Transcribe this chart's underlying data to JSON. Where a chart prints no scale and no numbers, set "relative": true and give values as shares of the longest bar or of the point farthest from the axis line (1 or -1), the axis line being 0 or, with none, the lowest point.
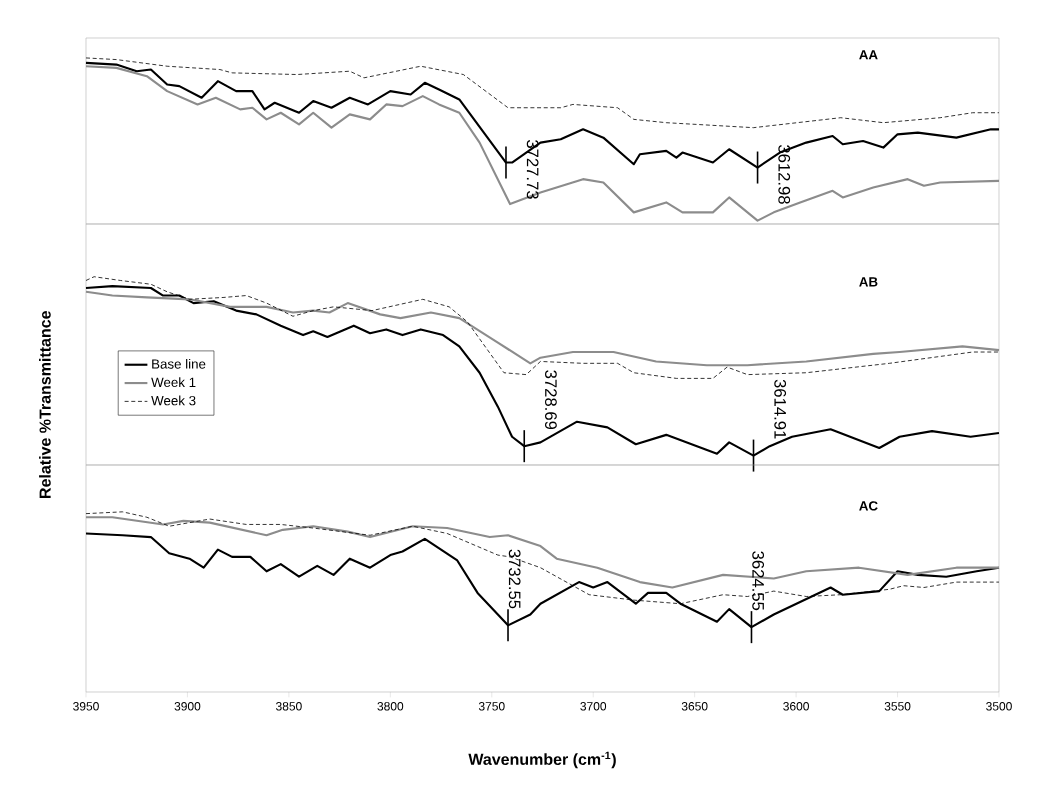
{
  "chart_data": [
    {
      "type": "line",
      "title": "AA",
      "relative": true,
      "xlim": [
        3950,
        3500
      ],
      "tick_labels": false,
      "series": [
        {
          "color": "#000000",
          "line_style": "solid",
          "x": [
            3950,
            3935,
            3925,
            3918,
            3910,
            3904,
            3893,
            3885,
            3876,
            3868,
            3862,
            3857,
            3845,
            3838,
            3829,
            3820,
            3811,
            3800,
            3790,
            3783,
            3776,
            3766,
            3743,
            3740,
            3726,
            3716,
            3705,
            3695,
            3680,
            3677,
            3664,
            3659,
            3656,
            3641,
            3633,
            3619,
            3608,
            3595,
            3582,
            3577,
            3567,
            3557,
            3550,
            3540,
            3521,
            3504,
            3500
          ],
          "values": [
            0.97,
            0.96,
            0.92,
            0.93,
            0.84,
            0.83,
            0.76,
            0.86,
            0.8,
            0.8,
            0.69,
            0.73,
            0.67,
            0.74,
            0.7,
            0.76,
            0.72,
            0.8,
            0.78,
            0.85,
            0.81,
            0.75,
            0.37,
            0.37,
            0.49,
            0.51,
            0.57,
            0.52,
            0.36,
            0.42,
            0.44,
            0.4,
            0.43,
            0.37,
            0.45,
            0.34,
            0.43,
            0.49,
            0.53,
            0.48,
            0.5,
            0.46,
            0.54,
            0.55,
            0.52,
            0.57,
            0.57
          ]
        },
        {
          "color": "#8c8c8c",
          "line_style": "solid",
          "x": [
            3950,
            3935,
            3920,
            3910,
            3895,
            3886,
            3874,
            3868,
            3861,
            3854,
            3845,
            3838,
            3829,
            3820,
            3810,
            3802,
            3794,
            3784,
            3776,
            3766,
            3756,
            3741,
            3726,
            3705,
            3695,
            3680,
            3664,
            3656,
            3641,
            3633,
            3619,
            3611,
            3598,
            3582,
            3577,
            3562,
            3545,
            3537,
            3529,
            3500
          ],
          "values": [
            0.95,
            0.94,
            0.89,
            0.8,
            0.72,
            0.76,
            0.69,
            0.7,
            0.63,
            0.67,
            0.6,
            0.67,
            0.58,
            0.66,
            0.63,
            0.72,
            0.71,
            0.77,
            0.72,
            0.67,
            0.49,
            0.12,
            0.19,
            0.27,
            0.25,
            0.07,
            0.13,
            0.07,
            0.07,
            0.16,
            0.02,
            0.07,
            0.13,
            0.2,
            0.16,
            0.22,
            0.27,
            0.23,
            0.25,
            0.26
          ]
        },
        {
          "color": "#000000",
          "line_style": "dashed",
          "x": [
            3950,
            3935,
            3910,
            3884,
            3878,
            3846,
            3820,
            3813,
            3785,
            3764,
            3742,
            3716,
            3710,
            3688,
            3680,
            3664,
            3621,
            3578,
            3557,
            3529,
            3513,
            3500
          ],
          "values": [
            1.0,
            0.99,
            0.95,
            0.93,
            0.91,
            0.9,
            0.92,
            0.88,
            0.95,
            0.9,
            0.7,
            0.7,
            0.72,
            0.7,
            0.63,
            0.61,
            0.58,
            0.64,
            0.61,
            0.64,
            0.67,
            0.67
          ]
        }
      ],
      "annotations": [
        {
          "text": "3727.73",
          "x": 3743,
          "y": 0.37
        },
        {
          "text": "3612.98",
          "x": 3619,
          "y": 0.34
        }
      ]
    },
    {
      "type": "line",
      "title": "AB",
      "ylabel": "Relative  %Transmittance",
      "relative": true,
      "xlim": [
        3950,
        3500
      ],
      "tick_labels": false,
      "legend": "left",
      "series": [
        {
          "name": "Base line",
          "color": "#000000",
          "line_style": "solid",
          "x": [
            3950,
            3937,
            3918,
            3912,
            3904,
            3897,
            3887,
            3876,
            3866,
            3854,
            3843,
            3838,
            3831,
            3818,
            3810,
            3802,
            3794,
            3785,
            3774,
            3766,
            3756,
            3747,
            3740,
            3734,
            3726,
            3708,
            3693,
            3679,
            3664,
            3639,
            3633,
            3621,
            3613,
            3602,
            3583,
            3559,
            3549,
            3533,
            3514,
            3500
          ],
          "values": [
            0.94,
            0.95,
            0.94,
            0.9,
            0.9,
            0.86,
            0.87,
            0.82,
            0.8,
            0.74,
            0.69,
            0.71,
            0.68,
            0.74,
            0.7,
            0.72,
            0.69,
            0.72,
            0.69,
            0.63,
            0.49,
            0.31,
            0.15,
            0.1,
            0.12,
            0.23,
            0.2,
            0.11,
            0.16,
            0.06,
            0.12,
            0.05,
            0.1,
            0.15,
            0.19,
            0.09,
            0.15,
            0.18,
            0.15,
            0.17
          ]
        },
        {
          "name": "Week 1",
          "color": "#8c8c8c",
          "line_style": "solid",
          "x": [
            3950,
            3937,
            3920,
            3899,
            3879,
            3861,
            3848,
            3838,
            3830,
            3821,
            3805,
            3795,
            3780,
            3766,
            3747,
            3731,
            3726,
            3710,
            3690,
            3669,
            3644,
            3624,
            3595,
            3562,
            3549,
            3518,
            3500
          ],
          "values": [
            0.92,
            0.9,
            0.89,
            0.88,
            0.84,
            0.84,
            0.81,
            0.82,
            0.81,
            0.86,
            0.8,
            0.78,
            0.81,
            0.78,
            0.65,
            0.54,
            0.57,
            0.6,
            0.6,
            0.55,
            0.53,
            0.53,
            0.55,
            0.59,
            0.6,
            0.63,
            0.61
          ]
        },
        {
          "name": "Week 3",
          "color": "#000000",
          "line_style": "dashed",
          "x": [
            3950,
            3946,
            3933,
            3918,
            3910,
            3899,
            3882,
            3871,
            3861,
            3848,
            3838,
            3828,
            3809,
            3784,
            3771,
            3762,
            3752,
            3744,
            3733,
            3726,
            3705,
            3688,
            3680,
            3659,
            3641,
            3634,
            3624,
            3595,
            3554,
            3513,
            3500
          ],
          "values": [
            0.98,
            1.0,
            0.98,
            0.96,
            0.92,
            0.88,
            0.89,
            0.9,
            0.86,
            0.79,
            0.82,
            0.84,
            0.82,
            0.88,
            0.84,
            0.76,
            0.61,
            0.49,
            0.48,
            0.55,
            0.54,
            0.54,
            0.49,
            0.46,
            0.46,
            0.52,
            0.48,
            0.49,
            0.54,
            0.6,
            0.6
          ]
        }
      ],
      "annotations": [
        {
          "text": "3728.69",
          "x": 3734,
          "y": 0.1
        },
        {
          "text": "3614.91",
          "x": 3621,
          "y": 0.05
        }
      ]
    },
    {
      "type": "line",
      "title": "AC",
      "xlabel": "Wavenumber (cm$^{-1}$)",
      "relative": true,
      "xlim": [
        3950,
        3500
      ],
      "xticks": [
        3950,
        3900,
        3850,
        3800,
        3750,
        3700,
        3650,
        3600,
        3550,
        3500
      ],
      "tick_labels": "x",
      "series": [
        {
          "color": "#000000",
          "line_style": "solid",
          "x": [
            3950,
            3932,
            3918,
            3909,
            3899,
            3892,
            3885,
            3878,
            3869,
            3861,
            3854,
            3845,
            3836,
            3828,
            3820,
            3810,
            3800,
            3794,
            3783,
            3767,
            3757,
            3742,
            3731,
            3726,
            3707,
            3700,
            3693,
            3679,
            3673,
            3664,
            3657,
            3639,
            3633,
            3622,
            3611,
            3583,
            3577,
            3559,
            3550,
            3540,
            3526,
            3511,
            3500
          ],
          "values": [
            0.88,
            0.87,
            0.86,
            0.77,
            0.74,
            0.69,
            0.79,
            0.75,
            0.75,
            0.67,
            0.71,
            0.64,
            0.7,
            0.65,
            0.74,
            0.69,
            0.76,
            0.78,
            0.85,
            0.73,
            0.55,
            0.37,
            0.43,
            0.49,
            0.61,
            0.58,
            0.61,
            0.49,
            0.55,
            0.55,
            0.49,
            0.39,
            0.46,
            0.36,
            0.43,
            0.58,
            0.54,
            0.56,
            0.67,
            0.65,
            0.64,
            0.67,
            0.69
          ]
        },
        {
          "color": "#8c8c8c",
          "line_style": "solid",
          "x": [
            3950,
            3937,
            3912,
            3902,
            3889,
            3861,
            3853,
            3838,
            3821,
            3810,
            3789,
            3772,
            3751,
            3742,
            3726,
            3718,
            3698,
            3677,
            3661,
            3636,
            3611,
            3595,
            3569,
            3545,
            3521,
            3500
          ],
          "values": [
            0.97,
            0.97,
            0.93,
            0.95,
            0.94,
            0.87,
            0.9,
            0.92,
            0.89,
            0.86,
            0.92,
            0.91,
            0.86,
            0.87,
            0.81,
            0.74,
            0.69,
            0.61,
            0.58,
            0.65,
            0.63,
            0.67,
            0.69,
            0.65,
            0.69,
            0.69
          ]
        },
        {
          "color": "#000000",
          "line_style": "dashed",
          "x": [
            3950,
            3932,
            3920,
            3909,
            3889,
            3871,
            3854,
            3838,
            3810,
            3789,
            3772,
            3747,
            3741,
            3726,
            3710,
            3702,
            3680,
            3657,
            3636,
            3624,
            3611,
            3595,
            3578,
            3554,
            3547,
            3537,
            3521,
            3500
          ],
          "values": [
            0.99,
            1.0,
            0.97,
            0.92,
            0.96,
            0.93,
            0.93,
            0.91,
            0.87,
            0.92,
            0.88,
            0.76,
            0.75,
            0.69,
            0.59,
            0.54,
            0.51,
            0.49,
            0.54,
            0.53,
            0.56,
            0.53,
            0.54,
            0.57,
            0.59,
            0.58,
            0.61,
            0.61
          ]
        }
      ],
      "annotations": [
        {
          "text": "3732.55",
          "x": 3742,
          "y": 0.37
        },
        {
          "text": "3624.55",
          "x": 3622,
          "y": 0.36
        }
      ]
    }
  ]
}
